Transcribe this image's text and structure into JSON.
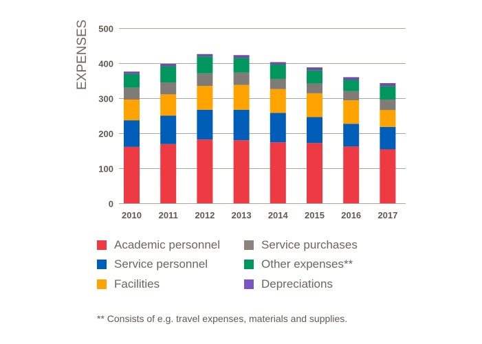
{
  "chart_data": {
    "type": "bar",
    "stacked": true,
    "title": "",
    "xlabel": "",
    "ylabel": "EXPENSES",
    "ylim": [
      0,
      500
    ],
    "yticks": [
      0,
      100,
      200,
      300,
      400,
      500
    ],
    "grid": true,
    "legend_position": "bottom",
    "categories": [
      "2010",
      "2011",
      "2012",
      "2013",
      "2014",
      "2015",
      "2016",
      "2017"
    ],
    "series": [
      {
        "name": "Academic personnel",
        "color": "#ee3a43",
        "values": [
          161,
          169,
          182,
          180,
          174,
          172,
          162,
          154
        ]
      },
      {
        "name": "Service personnel",
        "color": "#005eb8",
        "values": [
          76,
          81,
          85,
          87,
          84,
          74,
          65,
          64
        ]
      },
      {
        "name": "Facilities",
        "color": "#ffa300",
        "values": [
          59,
          61,
          68,
          71,
          68,
          68,
          67,
          48
        ]
      },
      {
        "name": "Service purchases",
        "color": "#807b76",
        "values": [
          34,
          34,
          36,
          35,
          29,
          28,
          26,
          30
        ]
      },
      {
        "name": "Other expenses**",
        "color": "#00965e",
        "values": [
          39,
          46,
          48,
          42,
          41,
          37,
          32,
          38
        ]
      },
      {
        "name": "Depreciations",
        "color": "#6d4fa3",
        "values": [
          7,
          7,
          7,
          8,
          7,
          9,
          8,
          9
        ]
      }
    ],
    "legend": [
      {
        "label": "Academic personnel",
        "color": "#ee3a43"
      },
      {
        "label": "Service personnel",
        "color": "#005eb8"
      },
      {
        "label": "Facilities",
        "color": "#ffa300"
      },
      {
        "label": "Service purchases",
        "color": "#8a847d"
      },
      {
        "label": "Other expenses**",
        "color": "#00965e"
      },
      {
        "label": "Depreciations",
        "color": "#7b55c6"
      }
    ],
    "footnote": "** Consists of e.g. travel expenses, materials and supplies."
  }
}
